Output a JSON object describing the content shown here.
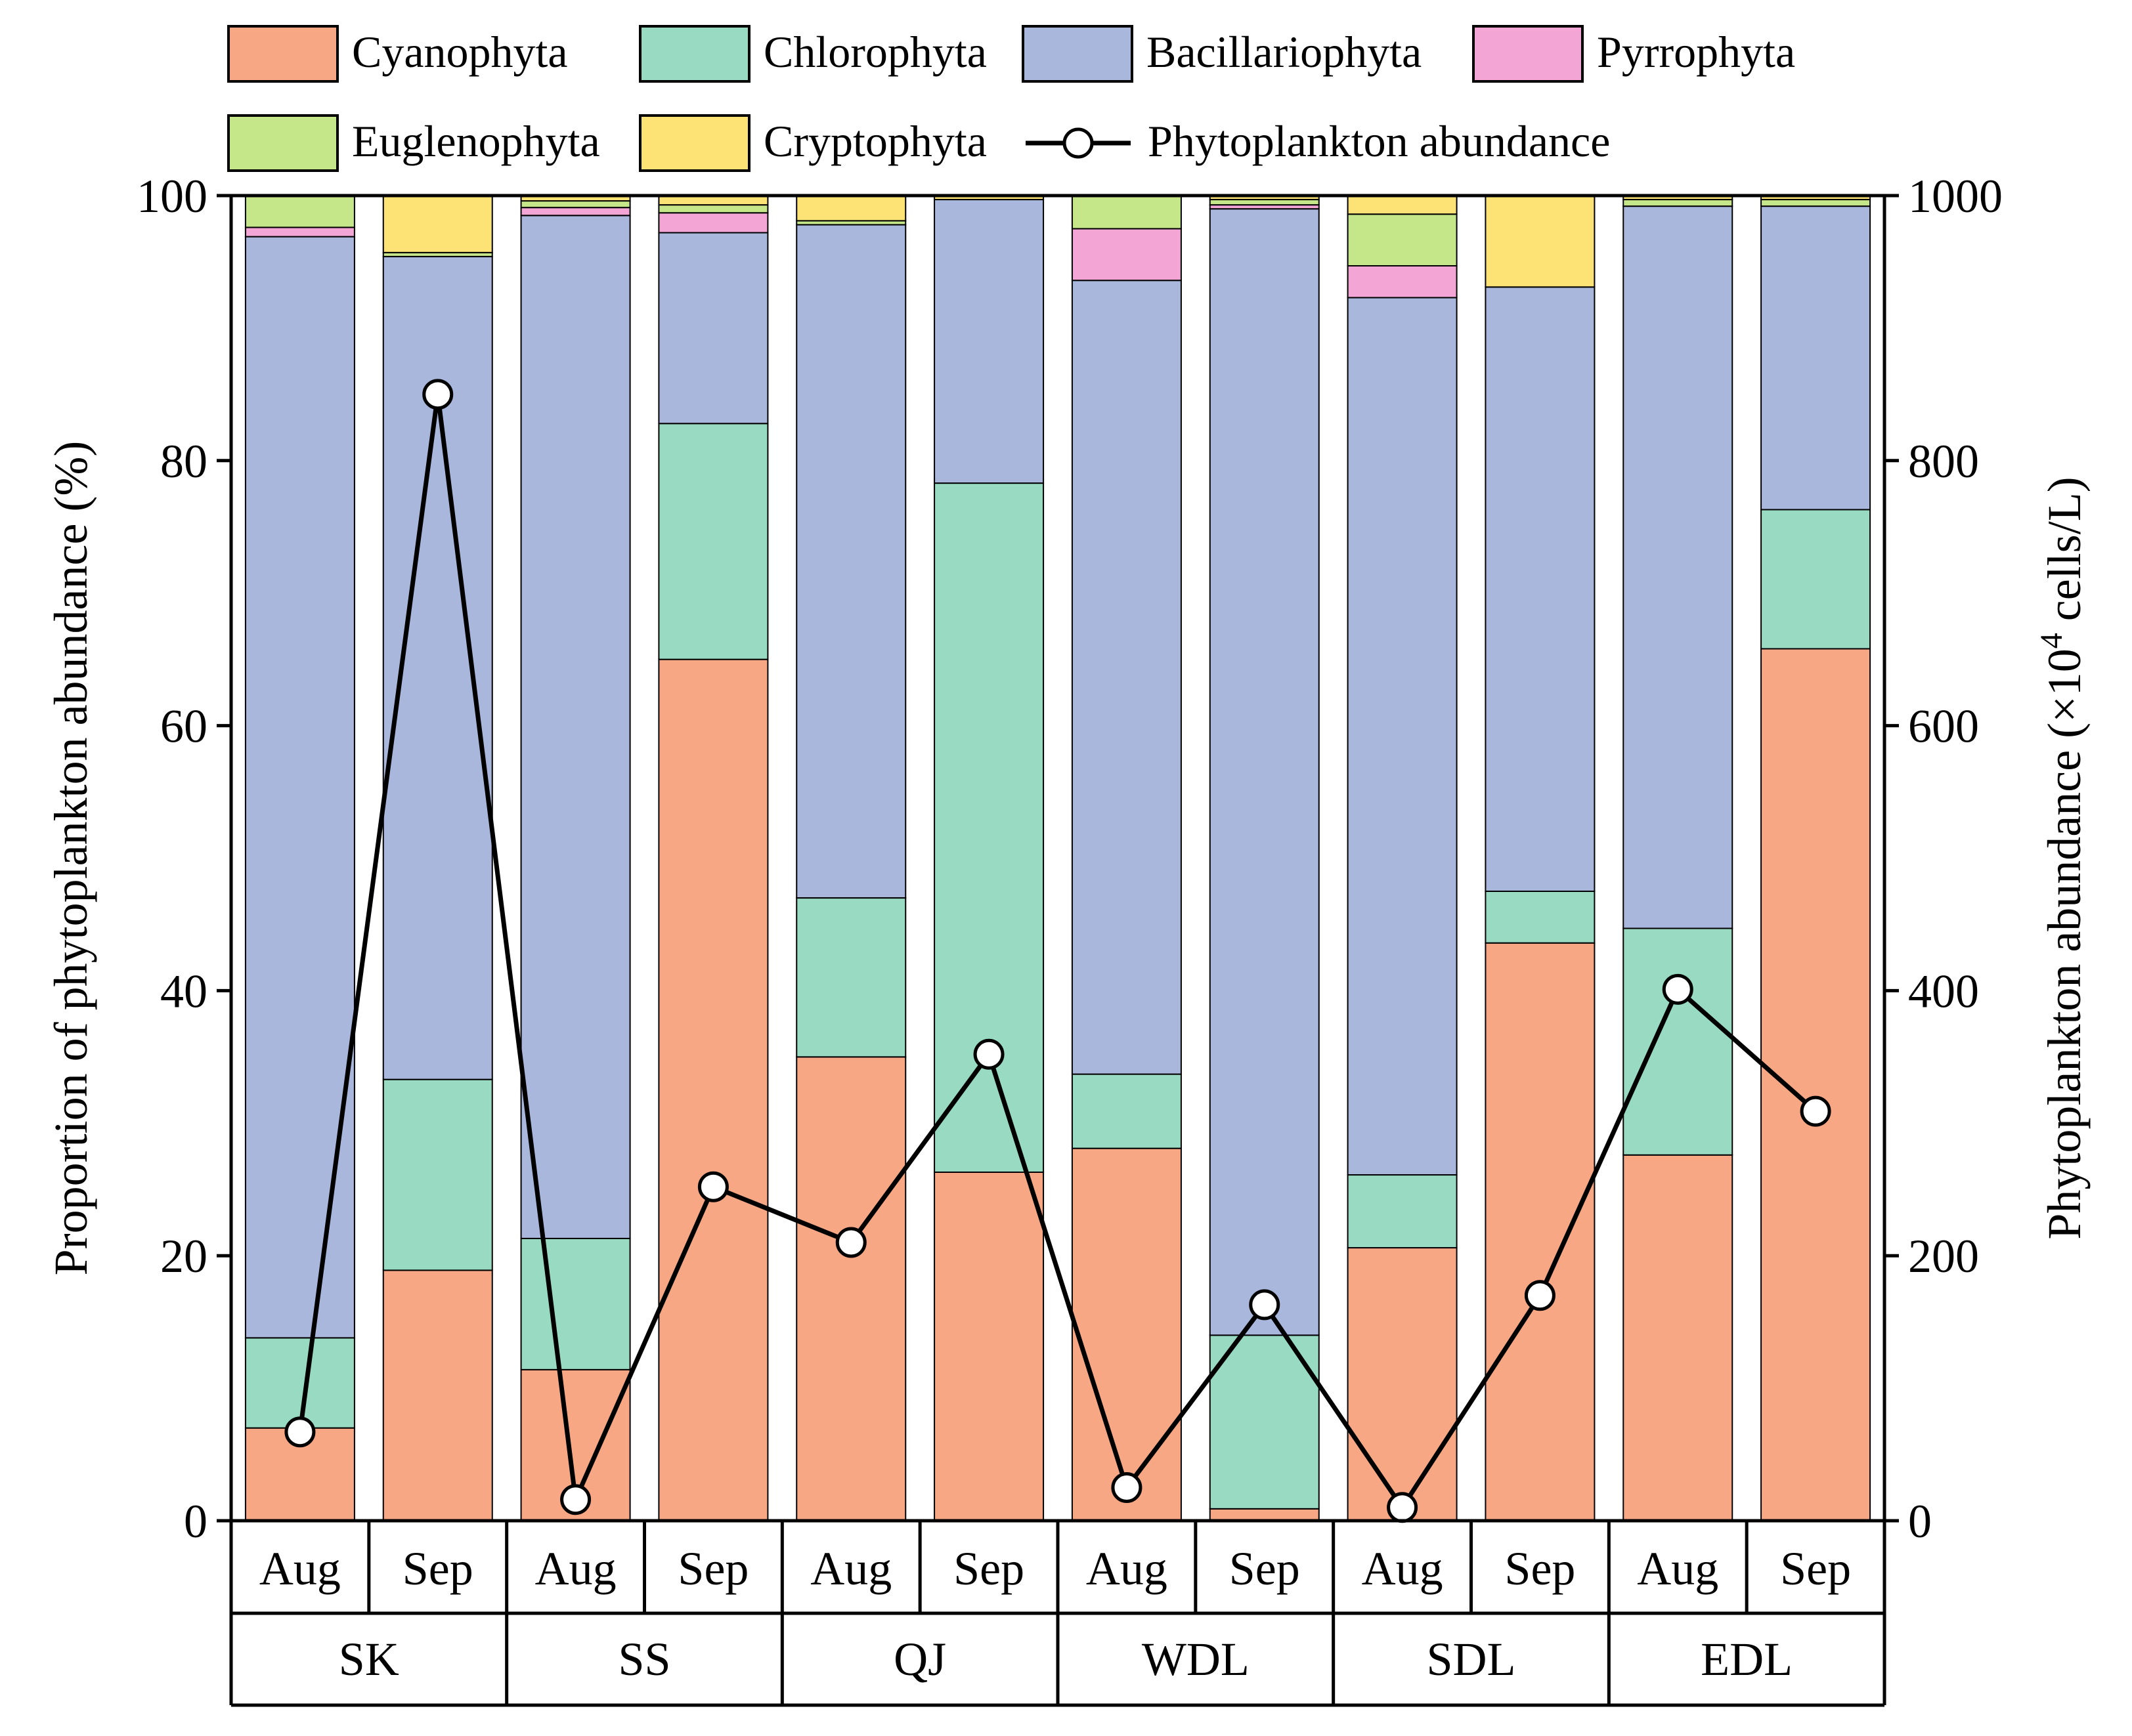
{
  "chart_data": {
    "type": "bar",
    "stacked": true,
    "groups": [
      {
        "label": "SK",
        "months": [
          "Aug",
          "Sep"
        ]
      },
      {
        "label": "SS",
        "months": [
          "Aug",
          "Sep"
        ]
      },
      {
        "label": "QJ",
        "months": [
          "Aug",
          "Sep"
        ]
      },
      {
        "label": "WDL",
        "months": [
          "Aug",
          "Sep"
        ]
      },
      {
        "label": "SDL",
        "months": [
          "Aug",
          "Sep"
        ]
      },
      {
        "label": "EDL",
        "months": [
          "Aug",
          "Sep"
        ]
      }
    ],
    "series": [
      {
        "name": "Cyanophyta",
        "color": "#F8A785",
        "values": [
          7.0,
          18.9,
          11.4,
          65.0,
          35.0,
          26.3,
          28.1,
          0.9,
          20.6,
          43.6,
          27.6,
          65.8
        ]
      },
      {
        "name": "Chlorophyta",
        "color": "#98DAC2",
        "values": [
          6.8,
          14.4,
          9.9,
          17.8,
          12.0,
          52.0,
          5.6,
          13.1,
          5.5,
          3.9,
          17.1,
          10.5
        ]
      },
      {
        "name": "Bacillariophyta",
        "color": "#A9B7DD",
        "values": [
          83.1,
          62.1,
          77.2,
          14.4,
          50.8,
          21.4,
          59.9,
          85.0,
          66.2,
          45.6,
          54.5,
          22.9
        ]
      },
      {
        "name": "Pyrrophyta",
        "color": "#F3A6D5",
        "values": [
          0.7,
          0.0,
          0.6,
          1.5,
          0.0,
          0.0,
          3.9,
          0.3,
          2.4,
          0.0,
          0.0,
          0.0
        ]
      },
      {
        "name": "Euglenophyta",
        "color": "#C6E68A",
        "values": [
          2.4,
          0.3,
          0.5,
          0.6,
          0.3,
          0.0,
          2.5,
          0.4,
          3.9,
          0.0,
          0.5,
          0.5
        ]
      },
      {
        "name": "Cryptophyta",
        "color": "#FDE376",
        "values": [
          0.0,
          4.3,
          0.4,
          0.7,
          1.9,
          0.3,
          0.0,
          0.3,
          1.4,
          6.9,
          0.3,
          0.3
        ]
      }
    ],
    "line_series": {
      "name": "Phytoplankton abundance",
      "axis": "right",
      "values": [
        67,
        850,
        16,
        252,
        210,
        352,
        25,
        163,
        10,
        170,
        401,
        309
      ]
    },
    "ylabel_left": "Proportion of phytoplankton abundance (%)",
    "ylabel_right_prefix": "Phytoplankton abundance (×10",
    "ylabel_right_sup": "4",
    "ylabel_right_suffix": " cells/L)",
    "ylim_left": [
      0,
      100
    ],
    "ylim_right": [
      0,
      1000
    ],
    "yticks_left": [
      "0",
      "20",
      "40",
      "60",
      "80",
      "100"
    ],
    "yticks_right": [
      "0",
      "200",
      "400",
      "600",
      "800",
      "1000"
    ],
    "legend_position": "top",
    "grid": false
  }
}
